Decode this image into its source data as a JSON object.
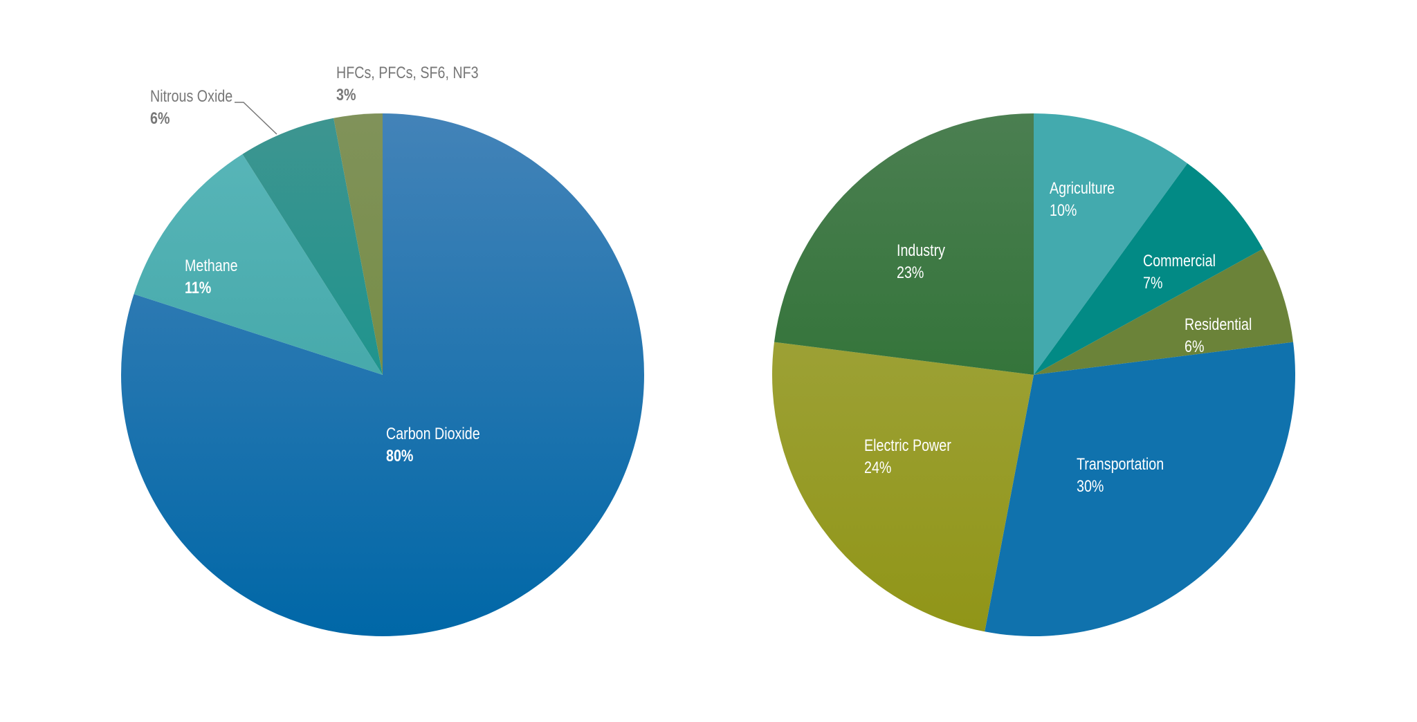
{
  "chart_data": [
    {
      "type": "pie",
      "title": "",
      "start_angle": "top, clockwise",
      "slices": [
        {
          "label": "Carbon Dioxide",
          "value": 80,
          "pct_label": "80%",
          "colors": [
            "#4383b8",
            "#0067a7"
          ]
        },
        {
          "label": "Methane",
          "value": 11,
          "pct_label": "11%",
          "colors": [
            "#5ab7ba",
            "#349c9c"
          ]
        },
        {
          "label": "Nitrous Oxide",
          "value": 6,
          "pct_label": "6%",
          "colors": [
            "#3e9590",
            "#00928a"
          ]
        },
        {
          "label": "HFCs, PFCs, SF6, NF3",
          "value": 3,
          "pct_label": "3%",
          "colors": [
            "#80925a",
            "#6f8a34"
          ]
        }
      ]
    },
    {
      "type": "pie",
      "title": "",
      "start_angle": "top, clockwise",
      "slices": [
        {
          "label": "Agriculture",
          "value": 10,
          "pct_label": "10%",
          "colors": [
            "#43aaae",
            "#43aaae"
          ]
        },
        {
          "label": "Commercial",
          "value": 7,
          "pct_label": "7%",
          "colors": [
            "#028a85",
            "#028a85"
          ]
        },
        {
          "label": "Residential",
          "value": 6,
          "pct_label": "6%",
          "colors": [
            "#6b8339",
            "#6b8339"
          ]
        },
        {
          "label": "Transportation",
          "value": 30,
          "pct_label": "30%",
          "colors": [
            "#1072ad",
            "#1072ad"
          ]
        },
        {
          "label": "Electric Power",
          "value": 24,
          "pct_label": "24%",
          "colors": [
            "#a6aa4c",
            "#909517"
          ]
        },
        {
          "label": "Industry",
          "value": 23,
          "pct_label": "23%",
          "colors": [
            "#4b7f51",
            "#1e6a24"
          ]
        }
      ]
    }
  ]
}
